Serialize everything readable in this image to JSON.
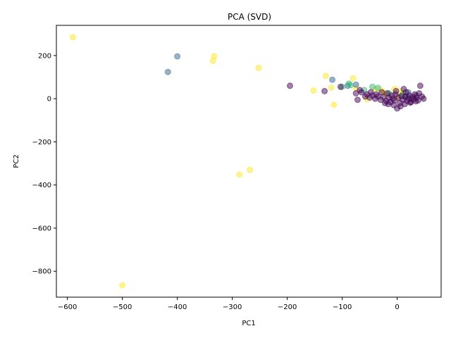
{
  "chart_data": {
    "type": "scatter",
    "title": "PCA (SVD)",
    "xlabel": "PC1",
    "ylabel": "PC2",
    "xlim": [
      -620,
      80
    ],
    "ylim": [
      -920,
      340
    ],
    "xticks": [
      -600,
      -500,
      -400,
      -300,
      -200,
      -100,
      0
    ],
    "yticks": [
      -800,
      -600,
      -400,
      -200,
      0,
      200
    ],
    "xtick_labels": [
      "−600",
      "−500",
      "−400",
      "−300",
      "−200",
      "−100",
      "0"
    ],
    "ytick_labels": [
      "−800",
      "−600",
      "−400",
      "−200",
      "0",
      "200"
    ],
    "grid": false,
    "legend": "none",
    "marker_alpha": 0.5,
    "groups": [
      {
        "color": "#fde725",
        "points": [
          [
            -590,
            285
          ],
          [
            -500,
            -865
          ],
          [
            -333,
            197
          ],
          [
            -335,
            175
          ],
          [
            -252,
            143
          ],
          [
            -287,
            -352
          ],
          [
            -268,
            -330
          ],
          [
            -130,
            106
          ],
          [
            -120,
            51
          ],
          [
            -152,
            38
          ],
          [
            -115,
            -28
          ],
          [
            -80,
            95
          ],
          [
            -75,
            48
          ],
          [
            -55,
            -3
          ],
          [
            -30,
            40
          ],
          [
            -25,
            30
          ],
          [
            -5,
            45
          ],
          [
            0,
            10
          ],
          [
            10,
            25
          ],
          [
            -40,
            45
          ],
          [
            -20,
            20
          ],
          [
            5,
            35
          ]
        ]
      },
      {
        "color": "#31688e",
        "points": [
          [
            -417,
            124
          ],
          [
            -400,
            196
          ],
          [
            -118,
            88
          ],
          [
            -75,
            65
          ],
          [
            -90,
            60
          ],
          [
            20,
            30
          ],
          [
            35,
            15
          ]
        ]
      },
      {
        "color": "#35b779",
        "points": [
          [
            -100,
            55
          ],
          [
            -88,
            70
          ],
          [
            -85,
            63
          ],
          [
            -45,
            55
          ],
          [
            -35,
            50
          ],
          [
            -15,
            25
          ],
          [
            10,
            20
          ],
          [
            15,
            8
          ],
          [
            25,
            0
          ],
          [
            -60,
            40
          ]
        ]
      },
      {
        "color": "#440154",
        "points": [
          [
            -195,
            60
          ],
          [
            -132,
            35
          ],
          [
            -103,
            55
          ],
          [
            -75,
            25
          ],
          [
            -72,
            -5
          ],
          [
            -65,
            30
          ],
          [
            -55,
            20
          ],
          [
            -50,
            5
          ],
          [
            -45,
            15
          ],
          [
            -40,
            0
          ],
          [
            -35,
            10
          ],
          [
            -30,
            -5
          ],
          [
            -25,
            8
          ],
          [
            -20,
            -10
          ],
          [
            -18,
            25
          ],
          [
            -15,
            5
          ],
          [
            -12,
            -15
          ],
          [
            -10,
            15
          ],
          [
            -8,
            0
          ],
          [
            -5,
            -8
          ],
          [
            -3,
            20
          ],
          [
            0,
            -45
          ],
          [
            2,
            5
          ],
          [
            5,
            -20
          ],
          [
            8,
            12
          ],
          [
            10,
            -5
          ],
          [
            12,
            45
          ],
          [
            15,
            10
          ],
          [
            18,
            -10
          ],
          [
            20,
            2
          ],
          [
            22,
            15
          ],
          [
            25,
            -15
          ],
          [
            28,
            8
          ],
          [
            30,
            -3
          ],
          [
            32,
            20
          ],
          [
            35,
            5
          ],
          [
            38,
            -8
          ],
          [
            40,
            25
          ],
          [
            42,
            60
          ],
          [
            45,
            10
          ],
          [
            48,
            0
          ],
          [
            -28,
            30
          ],
          [
            -22,
            -20
          ],
          [
            -16,
            -25
          ],
          [
            -6,
            -30
          ],
          [
            6,
            -35
          ],
          [
            14,
            -25
          ],
          [
            24,
            -18
          ],
          [
            34,
            -12
          ],
          [
            -38,
            20
          ],
          [
            -48,
            30
          ],
          [
            -58,
            10
          ],
          [
            -68,
            40
          ],
          [
            -2,
            35
          ],
          [
            16,
            30
          ]
        ]
      }
    ]
  }
}
